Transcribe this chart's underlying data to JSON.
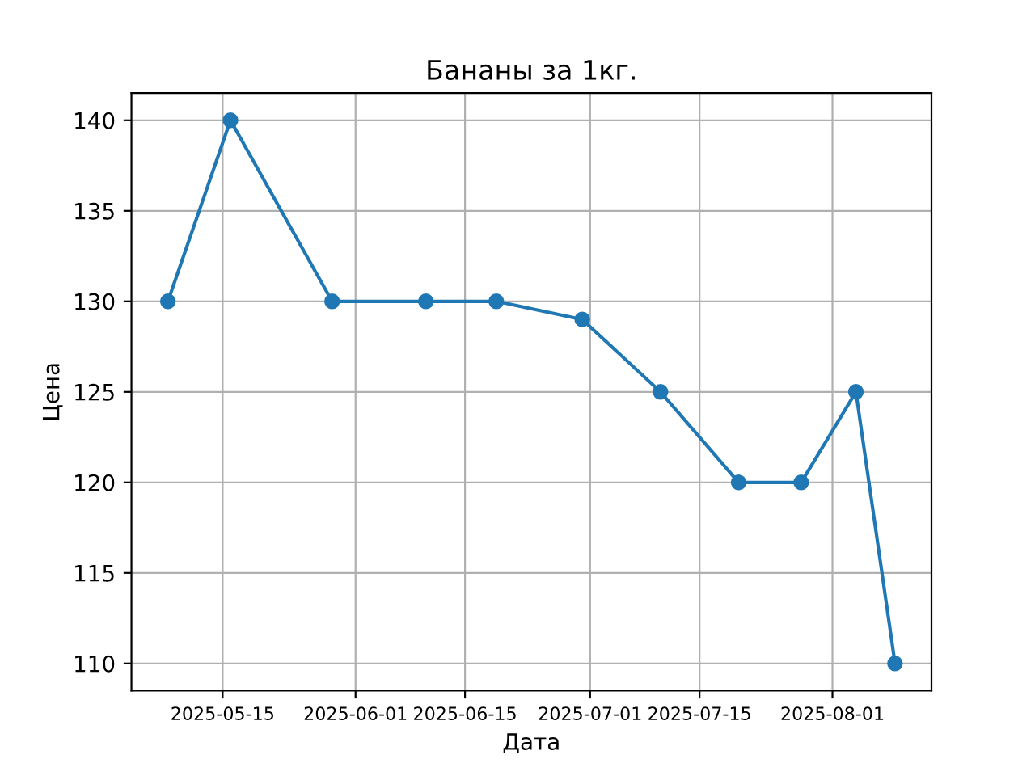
{
  "chart_data": {
    "type": "line",
    "title": "Бананы за 1кг.",
    "xlabel": "Дата",
    "ylabel": "Цена",
    "x": [
      "2025-05-08",
      "2025-05-16",
      "2025-05-29",
      "2025-06-10",
      "2025-06-19",
      "2025-06-30",
      "2025-07-10",
      "2025-07-20",
      "2025-07-28",
      "2025-08-04",
      "2025-08-09"
    ],
    "series": [
      {
        "color": "#1f77b4",
        "values": [
          130,
          140,
          130,
          130,
          130,
          129,
          125,
          120,
          120,
          125,
          110
        ]
      }
    ],
    "xlim": [
      "2025-05-03T08:00",
      "2025-08-13T16:00"
    ],
    "xticks": [
      "2025-05-15",
      "2025-06-01",
      "2025-06-15",
      "2025-07-01",
      "2025-07-15",
      "2025-08-01"
    ],
    "ylim": [
      108.5,
      141.5
    ],
    "yticks": [
      110,
      115,
      120,
      125,
      130,
      135,
      140
    ],
    "grid": true,
    "marker": "circle",
    "line_style": "solid",
    "legend": false
  }
}
